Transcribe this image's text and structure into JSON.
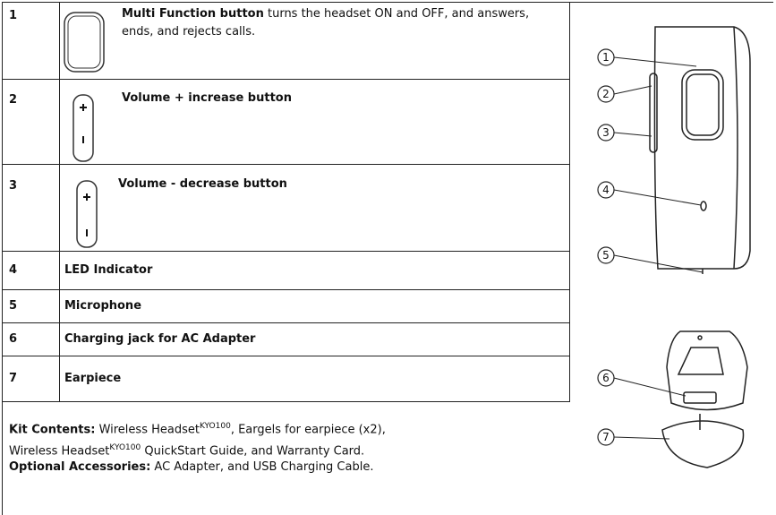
{
  "rows": [
    {
      "number": "1",
      "title": "Multi Function button",
      "text": " turns the headset ON and OFF, and answers, ends, and rejects calls."
    },
    {
      "number": "2",
      "title": "Volume + increase button"
    },
    {
      "number": "3",
      "title": "Volume - decrease button"
    },
    {
      "number": "4",
      "title": "LED Indicator"
    },
    {
      "number": "5",
      "title": "Microphone"
    },
    {
      "number": "6",
      "title": "Charging jack for AC Adapter"
    },
    {
      "number": "7",
      "title": "Earpiece"
    }
  ],
  "kit_contents": {
    "label": "Kit Contents:",
    "parts": [
      " Wireless Headset",
      "KYO100",
      ", Eargels for earpiece (x2),",
      "Wireless Headset",
      "KYO100",
      " QuickStart Guide, and Warranty Card."
    ]
  },
  "optional_accessories": {
    "label": "Optional Accessories:",
    "text": " AC Adapter, and USB Charging Cable."
  },
  "callouts": [
    "1",
    "2",
    "3",
    "4",
    "5",
    "6",
    "7"
  ]
}
